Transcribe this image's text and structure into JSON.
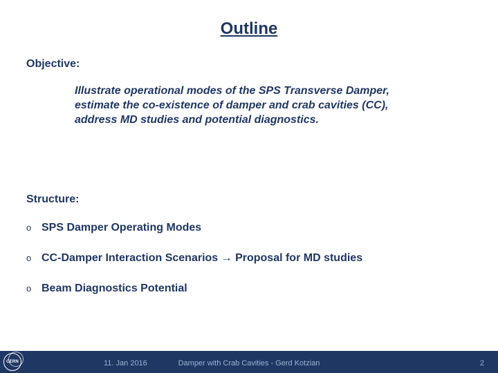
{
  "title": "Outline",
  "objective": {
    "label": "Objective:",
    "text": "Illustrate operational modes of the SPS Transverse Damper, estimate the co-existence of damper and crab cavities (CC), address MD studies and potential diagnostics."
  },
  "structure": {
    "label": "Structure:",
    "items": [
      {
        "text": "SPS Damper Operating Modes"
      },
      {
        "text": "CC-Damper Interaction Scenarios → Proposal for MD studies"
      },
      {
        "text": "Beam Diagnostics Potential"
      }
    ]
  },
  "footer": {
    "logo_text": "CERN",
    "date": "11. Jan 2016",
    "center": "Damper with Crab Cavities - Gerd Kotzian",
    "page": "2"
  },
  "colors": {
    "brand": "#1f3763",
    "footer_text": "#9db3d4",
    "background": "#ffffff"
  },
  "typography": {
    "title_fontsize": 24,
    "body_fontsize": 16,
    "footer_fontsize": 11
  }
}
